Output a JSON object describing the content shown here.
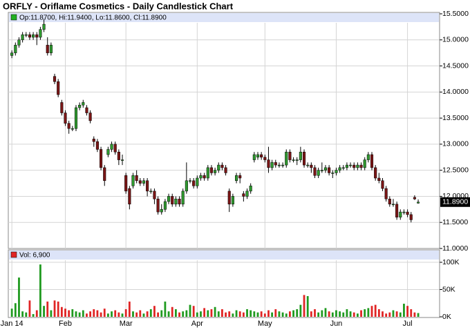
{
  "chart_data": {
    "type": "candlestick",
    "title": "ORFLY - Oriflame Cosmetics - Daily Candlestick Chart",
    "header": "Op:11.8700, Hi:11.9400, Lo:11.8600, Cl:11.8900",
    "last_label": "11.8900",
    "up_color": "#2f9a2f",
    "down_color": "#7a1515",
    "grid": true,
    "xlim": [
      -1,
      120
    ],
    "xticks": [
      {
        "value": 0,
        "label": "Jan 14"
      },
      {
        "value": 15,
        "label": "Feb"
      },
      {
        "value": 32,
        "label": "Mar"
      },
      {
        "value": 52,
        "label": "Apr"
      },
      {
        "value": 71,
        "label": "May"
      },
      {
        "value": 91,
        "label": "Jun"
      },
      {
        "value": 111,
        "label": "Jul"
      }
    ],
    "ylim": [
      11.0,
      15.5
    ],
    "yticks": [
      {
        "value": 11.0,
        "label": "11.0000"
      },
      {
        "value": 11.5,
        "label": "11.5000"
      },
      {
        "value": 12.0,
        "label": "12.0000"
      },
      {
        "value": 12.5,
        "label": "12.5000"
      },
      {
        "value": 13.0,
        "label": "13.0000"
      },
      {
        "value": 13.5,
        "label": "13.5000"
      },
      {
        "value": 14.0,
        "label": "14.0000"
      },
      {
        "value": 14.5,
        "label": "14.5000"
      },
      {
        "value": 15.0,
        "label": "15.0000"
      },
      {
        "value": 15.5,
        "label": "15.5000"
      }
    ],
    "open": [
      14.7,
      14.75,
      14.9,
      15.0,
      15.1,
      15.1,
      15.05,
      15.1,
      15.05,
      15.2,
      14.9,
      14.75,
      14.3,
      14.2,
      13.8,
      13.6,
      13.4,
      13.3,
      13.3,
      13.7,
      13.75,
      13.7,
      13.6,
      13.1,
      13.05,
      12.9,
      12.55,
      12.8,
      12.9,
      13.0,
      12.85,
      12.7,
      12.4,
      12.15,
      12.2,
      12.4,
      12.3,
      12.25,
      12.3,
      12.1,
      12.1,
      11.95,
      11.7,
      11.75,
      11.9,
      12.0,
      11.85,
      11.95,
      11.85,
      12.1,
      12.3,
      12.3,
      12.2,
      12.35,
      12.4,
      12.35,
      12.55,
      12.45,
      12.5,
      12.6,
      12.55,
      12.1,
      11.85,
      12.3,
      12.4,
      12.05,
      12.0,
      12.1,
      12.7,
      12.75,
      12.8,
      12.75,
      12.7,
      12.55,
      12.65,
      12.6,
      12.6,
      12.6,
      12.85,
      12.7,
      12.7,
      12.7,
      12.85,
      12.6,
      12.6,
      12.55,
      12.4,
      12.5,
      12.5,
      12.55,
      12.45,
      12.45,
      12.5,
      12.55,
      12.55,
      12.6,
      12.6,
      12.55,
      12.6,
      12.55,
      12.7,
      12.8,
      12.55,
      12.35,
      12.3,
      12.15,
      11.95,
      11.85,
      11.85,
      11.6,
      11.7,
      11.7,
      11.65,
      11.98,
      11.87
    ],
    "high": [
      14.8,
      14.95,
      15.05,
      15.15,
      15.15,
      15.15,
      15.15,
      15.15,
      15.25,
      15.4,
      15.05,
      14.95,
      14.35,
      14.25,
      13.85,
      13.65,
      13.45,
      13.35,
      13.75,
      13.8,
      13.85,
      13.75,
      13.65,
      13.15,
      13.1,
      12.95,
      12.6,
      12.95,
      13.05,
      13.05,
      12.9,
      12.8,
      12.45,
      12.2,
      12.45,
      12.5,
      12.35,
      12.35,
      12.35,
      12.15,
      12.15,
      12.0,
      11.85,
      11.95,
      12.05,
      12.05,
      12.0,
      12.0,
      12.15,
      12.65,
      12.35,
      12.35,
      12.4,
      12.45,
      12.45,
      12.6,
      12.6,
      12.55,
      12.65,
      12.65,
      12.6,
      12.15,
      12.05,
      12.45,
      12.45,
      12.1,
      12.15,
      12.25,
      12.85,
      12.85,
      12.85,
      12.8,
      12.95,
      12.7,
      12.7,
      12.65,
      12.65,
      12.9,
      12.9,
      12.75,
      12.75,
      12.95,
      12.9,
      12.65,
      12.65,
      12.6,
      12.55,
      12.65,
      12.6,
      12.6,
      12.5,
      12.55,
      12.6,
      12.6,
      12.65,
      12.65,
      12.65,
      12.65,
      12.65,
      12.75,
      12.85,
      12.85,
      12.6,
      12.45,
      12.35,
      12.2,
      12.0,
      11.95,
      11.9,
      11.75,
      11.75,
      11.75,
      11.7,
      12.02,
      11.94
    ],
    "low": [
      14.65,
      14.7,
      14.85,
      14.95,
      15.05,
      15.0,
      15.0,
      14.9,
      15.0,
      15.15,
      14.7,
      14.7,
      14.15,
      13.9,
      13.55,
      13.35,
      13.2,
      13.25,
      13.25,
      13.65,
      13.7,
      13.55,
      13.4,
      12.95,
      12.85,
      12.5,
      12.2,
      12.75,
      12.85,
      12.8,
      12.6,
      12.6,
      12.05,
      11.75,
      12.15,
      12.25,
      12.2,
      12.2,
      12.0,
      12.05,
      11.85,
      11.65,
      11.65,
      11.7,
      11.85,
      11.8,
      11.8,
      11.8,
      11.8,
      12.05,
      12.25,
      12.15,
      12.15,
      12.3,
      12.3,
      12.3,
      12.4,
      12.4,
      12.45,
      12.5,
      12.4,
      11.7,
      11.8,
      12.25,
      12.25,
      11.9,
      11.95,
      12.05,
      12.65,
      12.7,
      12.7,
      12.65,
      12.45,
      12.5,
      12.55,
      12.55,
      12.55,
      12.55,
      12.65,
      12.65,
      12.6,
      12.65,
      12.55,
      12.55,
      12.45,
      12.35,
      12.35,
      12.45,
      12.45,
      12.4,
      12.35,
      12.4,
      12.45,
      12.5,
      12.5,
      12.55,
      12.5,
      12.5,
      12.5,
      12.5,
      12.65,
      12.5,
      12.3,
      12.25,
      12.1,
      11.9,
      11.8,
      11.8,
      11.55,
      11.55,
      11.65,
      11.6,
      11.5,
      11.93,
      11.86
    ],
    "close": [
      14.75,
      14.9,
      15.0,
      15.1,
      15.1,
      15.05,
      15.1,
      15.05,
      15.2,
      15.3,
      14.75,
      14.9,
      14.2,
      13.95,
      13.6,
      13.4,
      13.3,
      13.3,
      13.7,
      13.75,
      13.8,
      13.6,
      13.45,
      13.05,
      12.9,
      12.55,
      12.3,
      12.9,
      13.0,
      12.85,
      12.7,
      12.7,
      12.1,
      11.85,
      12.4,
      12.3,
      12.25,
      12.3,
      12.1,
      12.1,
      11.95,
      11.7,
      11.75,
      11.9,
      12.0,
      11.85,
      11.95,
      11.85,
      12.1,
      12.3,
      12.3,
      12.2,
      12.35,
      12.4,
      12.35,
      12.55,
      12.45,
      12.5,
      12.6,
      12.55,
      12.45,
      11.85,
      12.0,
      12.4,
      12.35,
      12.0,
      12.1,
      12.2,
      12.8,
      12.8,
      12.75,
      12.7,
      12.55,
      12.65,
      12.6,
      12.6,
      12.6,
      12.85,
      12.7,
      12.7,
      12.7,
      12.85,
      12.6,
      12.6,
      12.55,
      12.4,
      12.5,
      12.5,
      12.55,
      12.45,
      12.45,
      12.5,
      12.55,
      12.55,
      12.6,
      12.6,
      12.55,
      12.6,
      12.55,
      12.7,
      12.8,
      12.55,
      12.35,
      12.3,
      12.15,
      11.95,
      11.85,
      11.85,
      11.6,
      11.7,
      11.7,
      11.65,
      11.55,
      11.95,
      11.89
    ],
    "volume": {
      "header": "Vol: 6,900",
      "up_color": "#1f9a1f",
      "down_color": "#e02424",
      "ylim": [
        0,
        100000
      ],
      "yticks": [
        {
          "value": 0,
          "label": "0K"
        },
        {
          "value": 50000,
          "label": "50K"
        },
        {
          "value": 100000,
          "label": "100K"
        }
      ],
      "values": [
        15000,
        25000,
        72000,
        10000,
        8000,
        30000,
        5000,
        12000,
        96000,
        20000,
        28000,
        12000,
        30000,
        28000,
        18000,
        15000,
        12000,
        14000,
        10000,
        8000,
        12000,
        6000,
        10000,
        14000,
        12000,
        8000,
        15000,
        6000,
        10000,
        12000,
        8000,
        6000,
        14000,
        28000,
        10000,
        8000,
        12000,
        6000,
        10000,
        14000,
        20000,
        8000,
        12000,
        28000,
        10000,
        18000,
        14000,
        8000,
        10000,
        12000,
        22000,
        20000,
        8000,
        10000,
        16000,
        12000,
        14000,
        18000,
        10000,
        14000,
        8000,
        10000,
        6000,
        12000,
        10000,
        8000,
        14000,
        12000,
        10000,
        8000,
        10000,
        6000,
        12000,
        8000,
        14000,
        10000,
        8000,
        6000,
        10000,
        12000,
        14000,
        22000,
        40000,
        38000,
        10000,
        14000,
        8000,
        12000,
        16000,
        10000,
        8000,
        12000,
        10000,
        8000,
        14000,
        10000,
        8000,
        6000,
        12000,
        14000,
        16000,
        20000,
        22000,
        14000,
        10000,
        6000,
        8000,
        12000,
        10000,
        8000,
        24000,
        20000,
        14000,
        8000,
        6900
      ]
    }
  }
}
